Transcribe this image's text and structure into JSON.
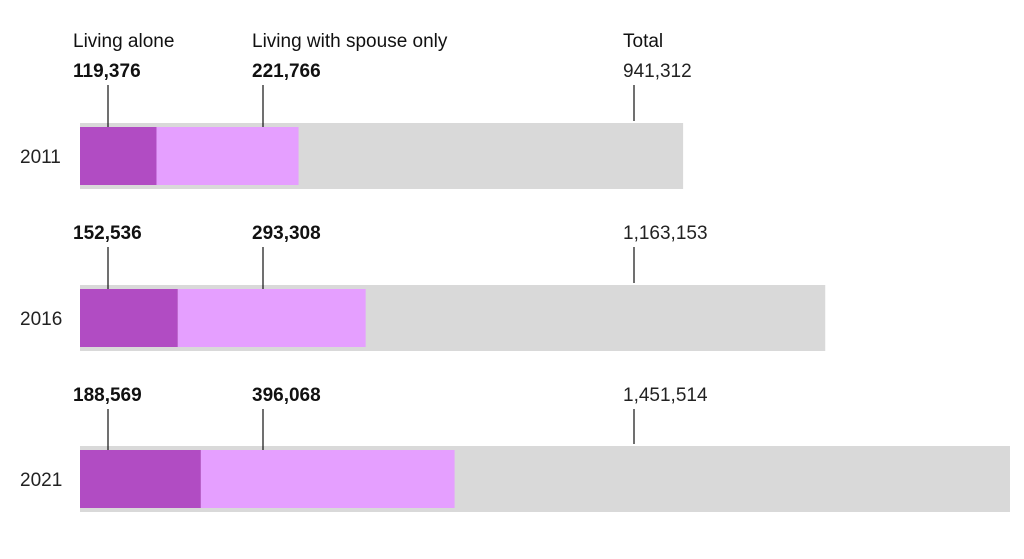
{
  "chart_data": {
    "type": "bar",
    "layout": "stacked-horizontal-nested",
    "categories": [
      "2011",
      "2016",
      "2021"
    ],
    "series": [
      {
        "name": "Living alone",
        "values": [
          119376,
          152536,
          188569
        ],
        "color": "#b14cc3"
      },
      {
        "name": "Living with spouse only",
        "values": [
          221766,
          293308,
          396068
        ],
        "color": "#e59fff"
      },
      {
        "name": "Total",
        "values": [
          941312,
          1163153,
          1451514
        ],
        "color": "#d9d9d9"
      }
    ],
    "value_labels": [
      [
        "119,376",
        "221,766",
        "941,312"
      ],
      [
        "152,536",
        "293,308",
        "1,163,153"
      ],
      [
        "188,569",
        "396,068",
        "1,451,514"
      ]
    ],
    "xlim": [
      0,
      1451514
    ],
    "grid": false,
    "title": "",
    "xlabel": "",
    "ylabel": ""
  }
}
